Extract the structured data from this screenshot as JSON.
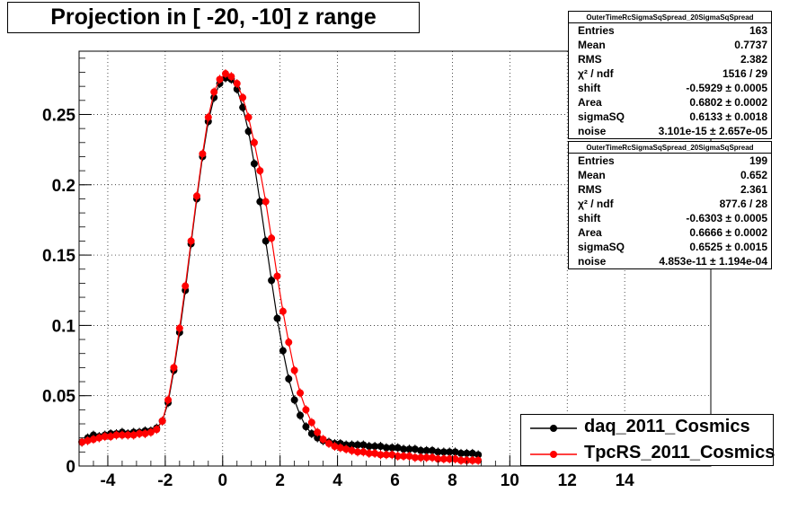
{
  "title": "Projection in [ -20, -10] z range",
  "stats": [
    {
      "name": "OuterTimeRcSigmaSqSpread_20SigmaSqSpread",
      "rows": [
        {
          "label": "Entries",
          "value": "163"
        },
        {
          "label": "Mean",
          "value": "0.7737"
        },
        {
          "label": "RMS",
          "value": "2.382"
        },
        {
          "label": "χ² / ndf",
          "value": "1516 / 29"
        },
        {
          "label": "shift",
          "value": "-0.5929 ± 0.0005"
        },
        {
          "label": "Area",
          "value": "0.6802 ± 0.0002"
        },
        {
          "label": "sigmaSQ",
          "value": "0.6133 ± 0.0018"
        },
        {
          "label": "noise",
          "value": "3.101e-15 ± 2.657e-05"
        }
      ]
    },
    {
      "name": "OuterTimeRcSigmaSqSpread_20SigmaSqSpread",
      "rows": [
        {
          "label": "Entries",
          "value": "199"
        },
        {
          "label": "Mean",
          "value": "0.652"
        },
        {
          "label": "RMS",
          "value": "2.361"
        },
        {
          "label": "χ² / ndf",
          "value": "877.6 / 28"
        },
        {
          "label": "shift",
          "value": "-0.6303 ± 0.0005"
        },
        {
          "label": "Area",
          "value": "0.6666 ± 0.0002"
        },
        {
          "label": "sigmaSQ",
          "value": "0.6525 ± 0.0015"
        },
        {
          "label": "noise",
          "value": "4.853e-11 ± 1.194e-04"
        }
      ]
    }
  ],
  "legend": [
    {
      "label": "daq_2011_Cosmics",
      "color": "#000000"
    },
    {
      "label": "TpcRS_2011_Cosmics",
      "color": "#ff0000"
    }
  ],
  "chart_data": {
    "type": "scatter",
    "title": "Projection in [ -20, -10] z range",
    "xlabel": "",
    "ylabel": "",
    "xlim": [
      -5,
      17
    ],
    "ylim": [
      0,
      0.295
    ],
    "xticks": [
      -4,
      -2,
      0,
      2,
      4,
      6,
      8,
      10,
      12,
      14
    ],
    "yticks": [
      0,
      0.05,
      0.1,
      0.15,
      0.2,
      0.25
    ],
    "ytick_labels": [
      "0",
      "0.05",
      "0.1",
      "0.15",
      "0.2",
      "0.25"
    ],
    "grid": true,
    "legend_position": "bottom-right",
    "series": [
      {
        "name": "daq_2011_Cosmics",
        "color": "#000000",
        "x": [
          -4.9,
          -4.7,
          -4.5,
          -4.3,
          -4.1,
          -3.9,
          -3.7,
          -3.5,
          -3.3,
          -3.1,
          -2.9,
          -2.7,
          -2.5,
          -2.3,
          -2.1,
          -1.9,
          -1.7,
          -1.5,
          -1.3,
          -1.1,
          -0.9,
          -0.7,
          -0.5,
          -0.3,
          -0.1,
          0.1,
          0.3,
          0.5,
          0.7,
          0.9,
          1.1,
          1.3,
          1.5,
          1.7,
          1.9,
          2.1,
          2.3,
          2.5,
          2.7,
          2.9,
          3.1,
          3.3,
          3.5,
          3.7,
          3.9,
          4.1,
          4.3,
          4.5,
          4.7,
          4.9,
          5.1,
          5.3,
          5.5,
          5.7,
          5.9,
          6.1,
          6.3,
          6.5,
          6.7,
          6.9,
          7.1,
          7.3,
          7.5,
          7.7,
          7.9,
          8.1,
          8.3,
          8.5,
          8.7,
          8.9
        ],
        "y": [
          0.017,
          0.02,
          0.022,
          0.021,
          0.022,
          0.023,
          0.023,
          0.024,
          0.023,
          0.024,
          0.024,
          0.025,
          0.025,
          0.027,
          0.032,
          0.045,
          0.068,
          0.095,
          0.125,
          0.158,
          0.19,
          0.22,
          0.245,
          0.262,
          0.272,
          0.276,
          0.275,
          0.268,
          0.255,
          0.238,
          0.215,
          0.188,
          0.16,
          0.132,
          0.105,
          0.082,
          0.062,
          0.047,
          0.036,
          0.028,
          0.023,
          0.02,
          0.018,
          0.017,
          0.016,
          0.016,
          0.015,
          0.015,
          0.015,
          0.015,
          0.014,
          0.014,
          0.014,
          0.013,
          0.013,
          0.013,
          0.012,
          0.012,
          0.012,
          0.011,
          0.011,
          0.011,
          0.01,
          0.01,
          0.01,
          0.01,
          0.009,
          0.009,
          0.009,
          0.008
        ]
      },
      {
        "name": "TpcRS_2011_Cosmics",
        "color": "#ff0000",
        "x": [
          -4.9,
          -4.7,
          -4.5,
          -4.3,
          -4.1,
          -3.9,
          -3.7,
          -3.5,
          -3.3,
          -3.1,
          -2.9,
          -2.7,
          -2.5,
          -2.3,
          -2.1,
          -1.9,
          -1.7,
          -1.5,
          -1.3,
          -1.1,
          -0.9,
          -0.7,
          -0.5,
          -0.3,
          -0.1,
          0.1,
          0.3,
          0.5,
          0.7,
          0.9,
          1.1,
          1.3,
          1.5,
          1.7,
          1.9,
          2.1,
          2.3,
          2.5,
          2.7,
          2.9,
          3.1,
          3.3,
          3.5,
          3.7,
          3.9,
          4.1,
          4.3,
          4.5,
          4.7,
          4.9,
          5.1,
          5.3,
          5.5,
          5.7,
          5.9,
          6.1,
          6.3,
          6.5,
          6.7,
          6.9,
          7.1,
          7.3,
          7.5,
          7.7,
          7.9,
          8.1,
          8.3,
          8.5,
          8.7,
          8.9
        ],
        "y": [
          0.017,
          0.018,
          0.019,
          0.02,
          0.021,
          0.021,
          0.022,
          0.022,
          0.022,
          0.022,
          0.023,
          0.023,
          0.024,
          0.026,
          0.032,
          0.047,
          0.07,
          0.098,
          0.128,
          0.16,
          0.192,
          0.222,
          0.248,
          0.266,
          0.275,
          0.279,
          0.277,
          0.272,
          0.262,
          0.248,
          0.23,
          0.21,
          0.188,
          0.162,
          0.135,
          0.11,
          0.088,
          0.068,
          0.052,
          0.04,
          0.031,
          0.024,
          0.019,
          0.016,
          0.014,
          0.013,
          0.012,
          0.011,
          0.01,
          0.01,
          0.009,
          0.009,
          0.008,
          0.008,
          0.008,
          0.007,
          0.007,
          0.007,
          0.006,
          0.006,
          0.006,
          0.006,
          0.005,
          0.005,
          0.005,
          0.005,
          0.004,
          0.004,
          0.004,
          0.004
        ]
      }
    ]
  }
}
